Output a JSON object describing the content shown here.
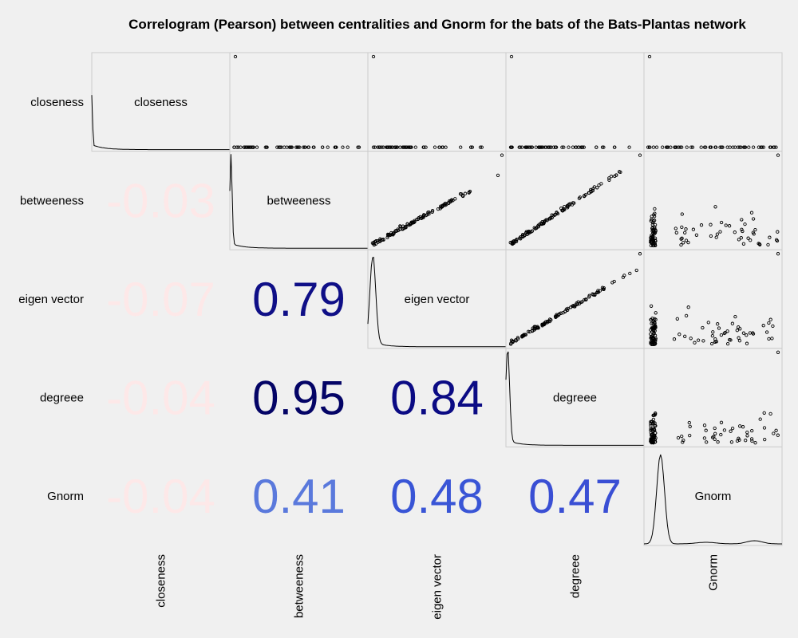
{
  "chart_data": {
    "type": "correlogram",
    "title": "Correlogram (Pearson) between centralities and Gnorm for the bats of the Bats-Plantas network",
    "variables": [
      "closeness",
      "betweeness",
      "eigen vector",
      "degreee",
      "Gnorm"
    ],
    "correlations": [
      {
        "row": "betweeness",
        "col": "closeness",
        "value": "-0.03",
        "color": "#fde8e8"
      },
      {
        "row": "eigen vector",
        "col": "closeness",
        "value": "-0.07",
        "color": "#fde8e8"
      },
      {
        "row": "eigen vector",
        "col": "betweeness",
        "value": "0.79",
        "color": "#0f0f87"
      },
      {
        "row": "degreee",
        "col": "closeness",
        "value": "-0.04",
        "color": "#fde8e8"
      },
      {
        "row": "degreee",
        "col": "betweeness",
        "value": "0.95",
        "color": "#040466"
      },
      {
        "row": "degreee",
        "col": "eigen vector",
        "value": "0.84",
        "color": "#0b0b84"
      },
      {
        "row": "Gnorm",
        "col": "closeness",
        "value": "-0.04",
        "color": "#fde8e8"
      },
      {
        "row": "Gnorm",
        "col": "betweeness",
        "value": "0.41",
        "color": "#5a79dc"
      },
      {
        "row": "Gnorm",
        "col": "eigen vector",
        "value": "0.48",
        "color": "#3955d6"
      },
      {
        "row": "Gnorm",
        "col": "degreee",
        "value": "0.47",
        "color": "#3a4fd4"
      }
    ],
    "diagonal": "density",
    "upper": "scatter",
    "grid": false,
    "colors": {
      "background": "#f0f0f0",
      "cell_border": "#cccccc",
      "points": "#000000"
    }
  }
}
